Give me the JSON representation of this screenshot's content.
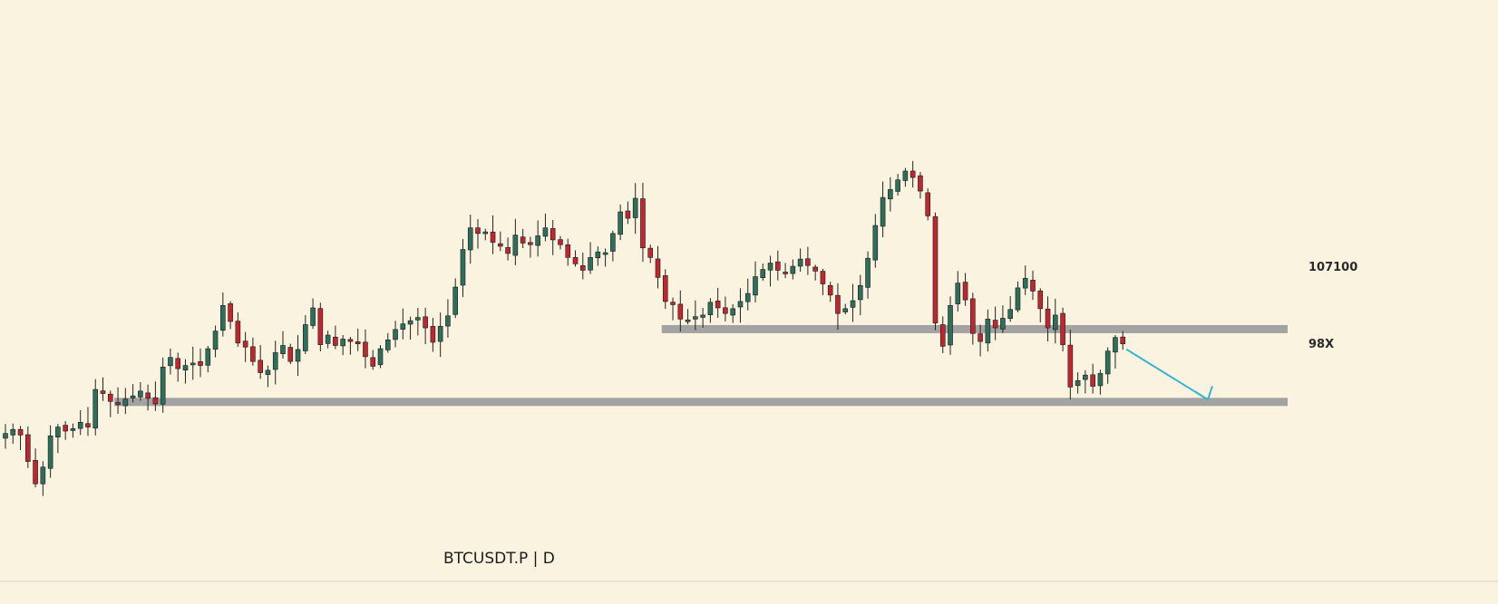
{
  "chart": {
    "symbol_label": "BTCUSDT.P  |  D",
    "background": "#faf3e0",
    "bottom_rule_color": "#d9d3c2"
  },
  "levels": [
    {
      "label": "107100",
      "value": 107100,
      "color": "#a3a3a3",
      "from_candle": 88
    },
    {
      "label": "98X",
      "value": 98000,
      "color": "#a3a3a3",
      "from_candle": 15
    }
  ],
  "chart_data": {
    "type": "candlestick",
    "title": "BTCUSDT.P | D",
    "xlabel": "",
    "ylabel": "",
    "ylim": [
      78000,
      138000
    ],
    "colors": {
      "up": "#2e6f5b",
      "down": "#c0262f",
      "wick": "#222222",
      "arrow": "#3ab3cf"
    },
    "closes": [
      94000,
      94500,
      93800,
      90500,
      87700,
      89800,
      93700,
      94800,
      94300,
      94600,
      95400,
      94800,
      99500,
      99000,
      98000,
      97600,
      98300,
      98700,
      99300,
      98400,
      97700,
      102300,
      103500,
      102100,
      102500,
      102800,
      102500,
      104600,
      106800,
      110000,
      108000,
      105300,
      104800,
      103000,
      101600,
      101900,
      104100,
      105000,
      103000,
      104500,
      107600,
      109700,
      105100,
      106300,
      105000,
      105800,
      105500,
      105200,
      103600,
      102400,
      104600,
      105700,
      107000,
      107700,
      108100,
      108500,
      107200,
      105400,
      107400,
      108700,
      112300,
      117000,
      119700,
      119000,
      119200,
      117900,
      117400,
      116500,
      118800,
      117800,
      117600,
      118700,
      119700,
      118200,
      117600,
      116000,
      115200,
      114400,
      116000,
      116700,
      116600,
      119000,
      121700,
      120900,
      123400,
      117200,
      116000,
      113500,
      110500,
      110100,
      108300,
      108200,
      108600,
      108800,
      110400,
      109700,
      109000,
      109600,
      110500,
      111500,
      113600,
      114500,
      115300,
      114400,
      114000,
      114900,
      115800,
      115000,
      114300,
      112700,
      111300,
      109000,
      109600,
      110600,
      112500,
      115900,
      120000,
      123500,
      124500,
      125700,
      126800,
      126000,
      124300,
      121200,
      107800,
      104900,
      110000,
      112800,
      110700,
      106500,
      105500,
      108300,
      107200,
      108400,
      109500,
      112200,
      113400,
      111800,
      109600,
      107200,
      108800,
      105100,
      99800,
      100600,
      101300,
      99900,
      101500,
      104300,
      106000,
      105200
    ]
  }
}
